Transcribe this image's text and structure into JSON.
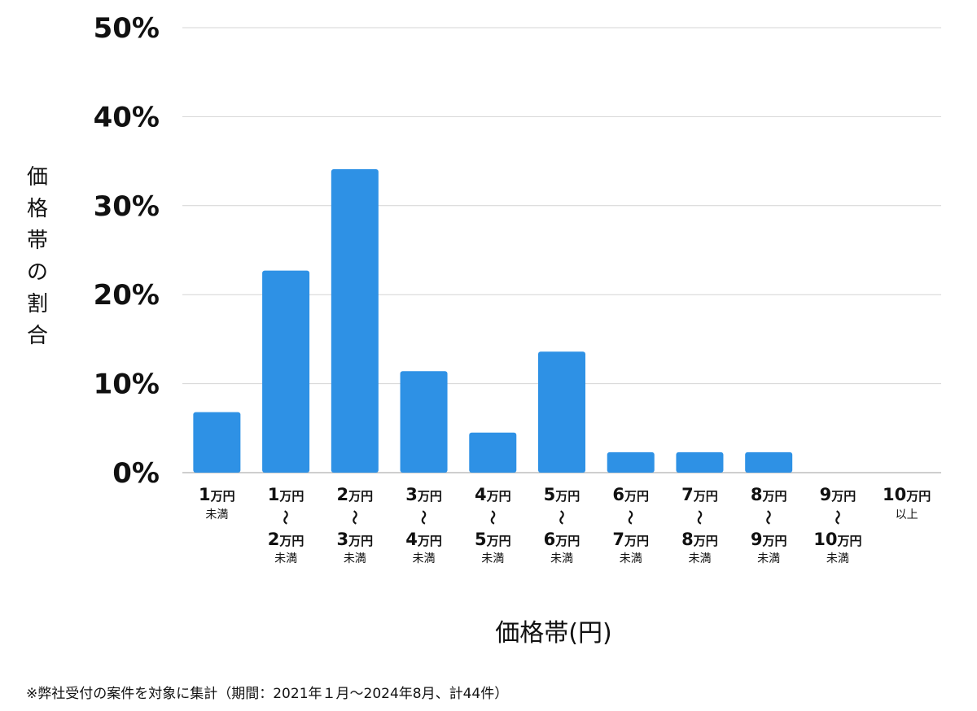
{
  "chart_data": {
    "type": "bar",
    "ylabel": "価格帯の割合",
    "xlabel": "価格帯(円)",
    "ylim": [
      0,
      50
    ],
    "yticks": [
      "0%",
      "10%",
      "20%",
      "30%",
      "40%",
      "50%"
    ],
    "ytick_values": [
      0,
      10,
      20,
      30,
      40,
      50
    ],
    "grid": true,
    "bar_color": "#2e91e5",
    "categories": [
      "1万円未満",
      "1万円〜2万円未満",
      "2万円〜3万円未満",
      "3万円〜4万円未満",
      "4万円〜5万円未満",
      "5万円〜6万円未満",
      "6万円〜7万円未満",
      "7万円〜8万円未満",
      "8万円〜9万円未満",
      "9万円〜10万円未満",
      "10万円以上"
    ],
    "category_parts": [
      {
        "from": "1",
        "unit": "万円",
        "to": null,
        "note": "未満"
      },
      {
        "from": "1",
        "unit": "万円",
        "to": "2",
        "note": "未満"
      },
      {
        "from": "2",
        "unit": "万円",
        "to": "3",
        "note": "未満"
      },
      {
        "from": "3",
        "unit": "万円",
        "to": "4",
        "note": "未満"
      },
      {
        "from": "4",
        "unit": "万円",
        "to": "5",
        "note": "未満"
      },
      {
        "from": "5",
        "unit": "万円",
        "to": "6",
        "note": "未満"
      },
      {
        "from": "6",
        "unit": "万円",
        "to": "7",
        "note": "未満"
      },
      {
        "from": "7",
        "unit": "万円",
        "to": "8",
        "note": "未満"
      },
      {
        "from": "8",
        "unit": "万円",
        "to": "9",
        "note": "未満"
      },
      {
        "from": "9",
        "unit": "万円",
        "to": "10",
        "note": "未満"
      },
      {
        "from": "10",
        "unit": "万円",
        "to": null,
        "note": "以上"
      }
    ],
    "values": [
      6.8,
      22.7,
      34.1,
      11.4,
      4.5,
      13.6,
      2.3,
      2.3,
      2.3,
      0,
      0
    ],
    "wave_glyph": "〜"
  },
  "footnote": "※弊社受付の案件を対象に集計（期間：2021年１月〜2024年8月、計44件）"
}
